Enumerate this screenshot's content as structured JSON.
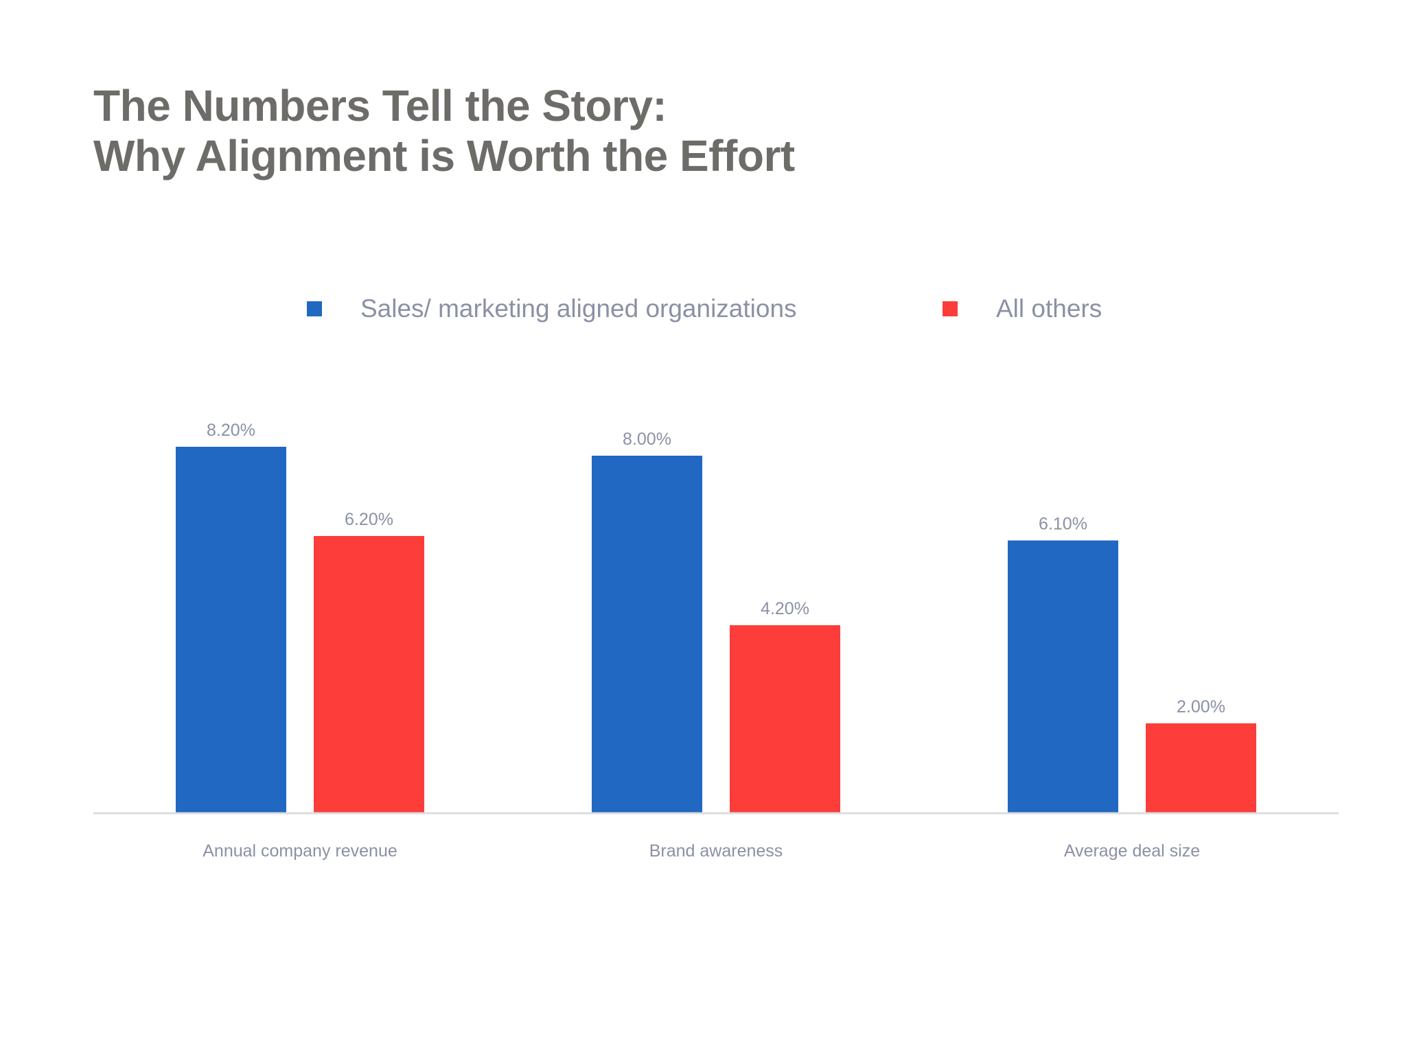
{
  "chart_data": {
    "type": "bar",
    "title_lines": [
      "The Numbers Tell the Story:",
      "Why Alignment is Worth the Effort"
    ],
    "categories": [
      "Annual company revenue",
      "Brand awareness",
      "Average deal size"
    ],
    "series": [
      {
        "name": "Sales/ marketing aligned organizations",
        "color": "#2068c1",
        "values": [
          8.2,
          8.0,
          6.1
        ],
        "labels": [
          "8.20%",
          "8.00%",
          "6.10%"
        ]
      },
      {
        "name": "All others",
        "color": "#fc3d3a",
        "values": [
          6.2,
          4.2,
          2.0
        ],
        "labels": [
          "6.20%",
          "4.20%",
          "2.00%"
        ]
      }
    ],
    "ylim": [
      0,
      10
    ],
    "grid": false,
    "legend_position": "top",
    "colors": {
      "title": "#6d6c69",
      "text": "#8b91a4",
      "axis": "#dcdde2"
    }
  }
}
